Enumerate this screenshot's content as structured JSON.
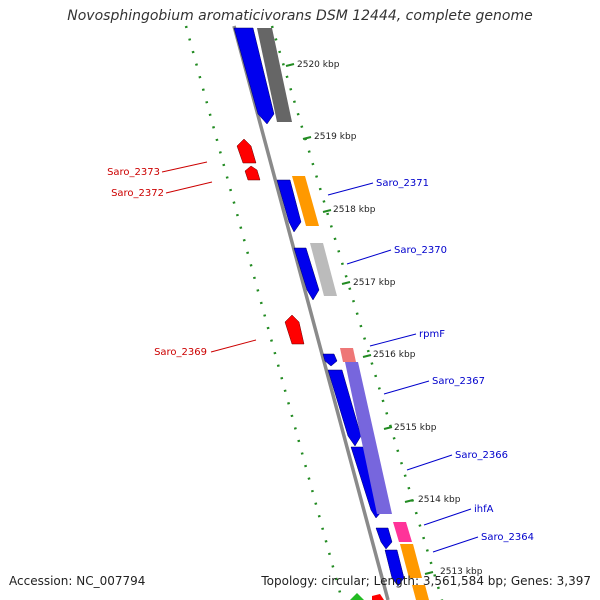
{
  "title": "Novosphingobium aromaticivorans DSM 12444, complete genome",
  "footer": {
    "accession": "Accession: NC_007794",
    "stats": "Topology: circular; Length: 3,561,584 bp; Genes: 3,397"
  },
  "colors": {
    "forward_cds": "#0000ee",
    "reverse_cds": "#ff0000",
    "backbone": "#888888",
    "tick": "#228b22",
    "label_forward": "#0000cc",
    "label_reverse": "#cc0000",
    "cog_orange": "#ff9900",
    "cog_grey": "#bbbbbb",
    "cog_dark": "#666666",
    "cog_purple": "#7766dd",
    "cog_pink": "#ff3399",
    "cog_salmon": "#ff8080"
  },
  "ticks": [
    "2520 kbp",
    "2519 kbp",
    "2518 kbp",
    "2517 kbp",
    "2516 kbp",
    "2515 kbp",
    "2514 kbp",
    "2513 kbp"
  ],
  "genes_forward": [
    "Saro_2371",
    "Saro_2370",
    "rpmF",
    "Saro_2367",
    "Saro_2366",
    "ihfA",
    "Saro_2364"
  ],
  "genes_reverse": [
    "Saro_2373",
    "Saro_2372",
    "Saro_2369"
  ]
}
